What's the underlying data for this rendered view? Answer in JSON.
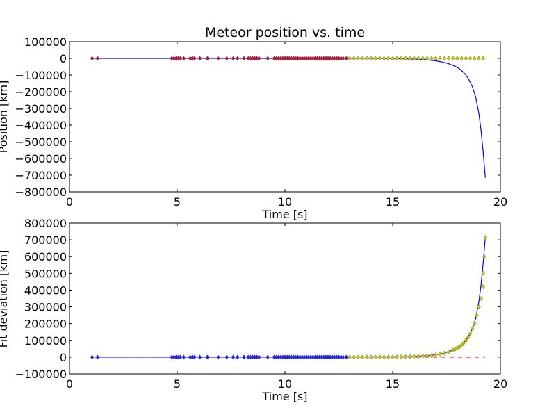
{
  "chart_data": [
    {
      "type": "line",
      "title": "Meteor position vs. time",
      "xlabel": "Time [s]",
      "ylabel": "Position [km]",
      "xlim": [
        0,
        20
      ],
      "ylim": [
        -800000,
        100000
      ],
      "xticks": [
        "0",
        "5",
        "10",
        "15",
        "20"
      ],
      "yticks": [
        "100000",
        "0",
        "−100000",
        "−200000",
        "−300000",
        "−400000",
        "−500000",
        "−600000",
        "−700000",
        "−800000"
      ],
      "grid": false,
      "series": [
        {
          "kind": "line",
          "color": "#0000ff",
          "x": [
            1.0,
            2,
            4,
            6,
            8,
            10,
            12,
            13,
            14,
            14.5,
            15,
            15.5,
            16,
            16.5,
            17,
            17.3,
            17.6,
            17.9,
            18.1,
            18.3,
            18.5,
            18.7,
            18.85,
            19.0,
            19.1,
            19.2,
            19.3
          ],
          "y": [
            0,
            0,
            0,
            0,
            0,
            0,
            -50,
            -150,
            -400,
            -700,
            -1300,
            -2300,
            -4200,
            -7800,
            -14500,
            -21500,
            -32000,
            -47000,
            -62000,
            -85000,
            -118000,
            -170000,
            -230000,
            -330000,
            -430000,
            -560000,
            -715000
          ]
        },
        {
          "kind": "points",
          "marker": "diamond",
          "color": "#c0143c",
          "x": [
            1.05,
            1.3,
            4.75,
            4.85,
            4.95,
            5.05,
            5.15,
            5.3,
            5.6,
            5.7,
            5.8,
            6.05,
            6.4,
            6.9,
            7.3,
            7.6,
            7.8,
            8.1,
            8.3,
            8.4,
            8.5,
            8.6,
            8.7,
            8.8,
            9.2,
            9.5,
            9.6,
            9.7,
            9.8,
            9.9,
            10.0,
            10.1,
            10.2,
            10.3,
            10.4,
            10.5,
            10.6,
            10.7,
            10.8,
            10.9,
            11.0,
            11.1,
            11.2,
            11.3,
            11.4,
            11.5,
            11.6,
            11.7,
            11.8,
            11.9,
            12.0,
            12.1,
            12.2,
            12.3,
            12.4,
            12.5,
            12.6,
            12.7,
            12.85
          ],
          "y": [
            0,
            0,
            0,
            0,
            0,
            0,
            0,
            0,
            0,
            0,
            0,
            0,
            0,
            0,
            0,
            0,
            0,
            0,
            0,
            0,
            0,
            0,
            0,
            0,
            0,
            0,
            0,
            0,
            0,
            0,
            0,
            0,
            0,
            0,
            0,
            0,
            0,
            0,
            0,
            0,
            0,
            0,
            0,
            0,
            0,
            0,
            0,
            0,
            0,
            0,
            0,
            0,
            0,
            0,
            0,
            0,
            0,
            0,
            0
          ]
        },
        {
          "kind": "points",
          "marker": "diamond",
          "color": "#c8c800",
          "x": [
            13.0,
            13.2,
            13.4,
            13.6,
            13.8,
            14.0,
            14.2,
            14.4,
            14.6,
            14.8,
            15.0,
            15.2,
            15.4,
            15.6,
            15.8,
            16.0,
            16.2,
            16.4,
            16.6,
            16.8,
            17.0,
            17.2,
            17.4,
            17.6,
            17.8,
            18.0,
            18.2,
            18.4,
            18.6,
            18.8,
            19.0,
            19.2
          ],
          "y": [
            0,
            0,
            0,
            0,
            0,
            0,
            0,
            0,
            0,
            0,
            0,
            0,
            0,
            0,
            0,
            0,
            0,
            0,
            0,
            0,
            0,
            0,
            0,
            0,
            0,
            0,
            0,
            0,
            0,
            0,
            0,
            0
          ]
        }
      ]
    },
    {
      "type": "line",
      "title": "",
      "xlabel": "Time [s]",
      "ylabel": "Fit deviation [km]",
      "xlim": [
        0,
        20
      ],
      "ylim": [
        -100000,
        800000
      ],
      "xticks": [
        "0",
        "5",
        "10",
        "15",
        "20"
      ],
      "yticks": [
        "800000",
        "700000",
        "600000",
        "500000",
        "400000",
        "300000",
        "200000",
        "100000",
        "0",
        "−100000"
      ],
      "grid": false,
      "series": [
        {
          "kind": "dashed",
          "color": "#ff0000",
          "x": [
            1.0,
            19.3
          ],
          "y": [
            0,
            0
          ]
        },
        {
          "kind": "line",
          "color": "#0000ff",
          "x": [
            1.0,
            2,
            4,
            6,
            8,
            10,
            12,
            13,
            14,
            14.5,
            15,
            15.5,
            16,
            16.5,
            17,
            17.3,
            17.6,
            17.9,
            18.1,
            18.3,
            18.5,
            18.7,
            18.85,
            19.0,
            19.1,
            19.2,
            19.3
          ],
          "y": [
            0,
            0,
            0,
            0,
            0,
            0,
            50,
            150,
            400,
            700,
            1300,
            2300,
            4200,
            7800,
            14500,
            21500,
            32000,
            47000,
            62000,
            85000,
            118000,
            170000,
            230000,
            330000,
            430000,
            560000,
            715000
          ]
        },
        {
          "kind": "points",
          "marker": "diamond",
          "color": "#1e1eff",
          "x": [
            1.05,
            1.3,
            4.75,
            4.85,
            4.95,
            5.05,
            5.15,
            5.3,
            5.6,
            5.7,
            5.8,
            6.05,
            6.4,
            6.9,
            7.3,
            7.6,
            7.8,
            8.1,
            8.3,
            8.4,
            8.5,
            8.6,
            8.7,
            8.8,
            9.2,
            9.5,
            9.6,
            9.7,
            9.8,
            9.9,
            10.0,
            10.1,
            10.2,
            10.3,
            10.4,
            10.5,
            10.6,
            10.7,
            10.8,
            10.9,
            11.0,
            11.1,
            11.2,
            11.3,
            11.4,
            11.5,
            11.6,
            11.7,
            11.8,
            11.9,
            12.0,
            12.1,
            12.2,
            12.3,
            12.4,
            12.5,
            12.6,
            12.7,
            12.85
          ],
          "y": [
            0,
            0,
            0,
            0,
            0,
            0,
            0,
            0,
            0,
            0,
            0,
            0,
            0,
            0,
            0,
            0,
            0,
            0,
            0,
            0,
            0,
            0,
            0,
            0,
            0,
            0,
            0,
            0,
            0,
            0,
            0,
            0,
            0,
            0,
            0,
            0,
            0,
            0,
            0,
            0,
            0,
            0,
            0,
            0,
            0,
            0,
            0,
            0,
            0,
            0,
            0,
            0,
            0,
            0,
            0,
            0,
            0,
            0,
            0
          ]
        },
        {
          "kind": "points",
          "marker": "diamond",
          "color": "#c8c800",
          "x": [
            13.0,
            13.2,
            13.4,
            13.6,
            13.8,
            14.0,
            14.2,
            14.4,
            14.6,
            14.8,
            15.0,
            15.2,
            15.4,
            15.6,
            15.8,
            16.0,
            16.2,
            16.4,
            16.6,
            16.8,
            17.0,
            17.2,
            17.4,
            17.6,
            17.8,
            17.9,
            18.0,
            18.1,
            18.2,
            18.3,
            18.4,
            18.5,
            18.6,
            18.7,
            18.8,
            18.9,
            19.0,
            19.1,
            19.2
          ],
          "y": [
            150,
            200,
            250,
            320,
            400,
            500,
            600,
            700,
            850,
            1000,
            1300,
            1700,
            2000,
            2400,
            3000,
            4200,
            5000,
            6200,
            7800,
            9500,
            14500,
            18500,
            24000,
            32000,
            42000,
            47000,
            55000,
            62000,
            72000,
            85000,
            100000,
            118000,
            140000,
            170000,
            200000,
            250000,
            300000,
            350000,
            420000
          ]
        },
        {
          "kind": "points",
          "marker": "diamond",
          "color": "#c8c800",
          "x": [
            19.2,
            19.25,
            19.3
          ],
          "y": [
            500000,
            600000,
            715000
          ]
        }
      ]
    }
  ]
}
